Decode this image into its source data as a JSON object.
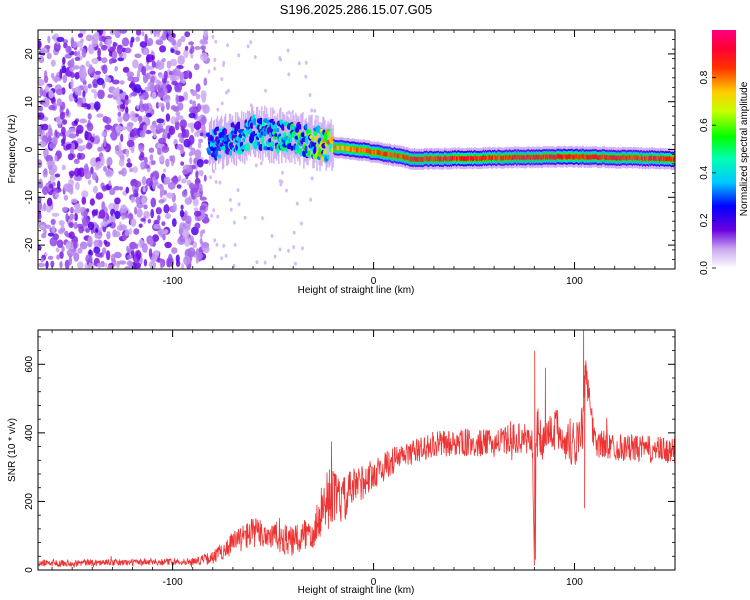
{
  "title": "S196.2025.286.15.07.G05",
  "chart_data": [
    {
      "type": "heatmap",
      "xlabel": "Height of straight line (km)",
      "ylabel": "Frequency (Hz)",
      "xlim": [
        -167,
        150
      ],
      "ylim": [
        -25,
        25
      ],
      "xticks": [
        -100,
        0,
        100
      ],
      "yticks": [
        -20,
        -10,
        0,
        10,
        20
      ],
      "colorbar": {
        "label": "Normalized spectral amplitude",
        "range": [
          0,
          1
        ],
        "ticks": [
          0.0,
          0.2,
          0.4,
          0.6,
          0.8
        ]
      },
      "ridge": [
        {
          "x": -80,
          "y": 1.0,
          "amp": 0.3
        },
        {
          "x": -60,
          "y": 3.5,
          "amp": 0.35
        },
        {
          "x": -40,
          "y": 2.5,
          "amp": 0.45
        },
        {
          "x": -20,
          "y": 0.5,
          "amp": 0.8
        },
        {
          "x": 0,
          "y": -0.5,
          "amp": 0.9
        },
        {
          "x": 20,
          "y": -2.0,
          "amp": 0.95
        },
        {
          "x": 100,
          "y": -1.5,
          "amp": 0.95
        },
        {
          "x": 150,
          "y": -2.0,
          "amp": 0.95
        }
      ]
    },
    {
      "type": "line",
      "xlabel": "Height of straight line (km)",
      "ylabel": "SNR (10 * v/v)",
      "xlim": [
        -167,
        150
      ],
      "ylim": [
        0,
        700
      ],
      "xticks": [
        -100,
        0,
        100
      ],
      "yticks": [
        0,
        200,
        400,
        600
      ],
      "series": [
        {
          "name": "SNR",
          "color": "#ee3333",
          "x": [
            -167,
            -120,
            -90,
            -80,
            -70,
            -60,
            -50,
            -40,
            -30,
            -22,
            -15,
            -10,
            0,
            10,
            20,
            30,
            40,
            60,
            70,
            79,
            80,
            81,
            85,
            90,
            95,
            100,
            104,
            105,
            110,
            120,
            130,
            140,
            150
          ],
          "values": [
            20,
            22,
            25,
            35,
            80,
            110,
            100,
            80,
            120,
            220,
            200,
            240,
            280,
            320,
            345,
            365,
            370,
            370,
            385,
            380,
            30,
            400,
            380,
            420,
            380,
            370,
            420,
            600,
            370,
            360,
            355,
            350,
            345
          ],
          "noise": [
            10,
            10,
            10,
            20,
            35,
            45,
            45,
            45,
            60,
            80,
            70,
            60,
            45,
            40,
            35,
            40,
            40,
            40,
            45,
            45,
            25,
            80,
            60,
            60,
            70,
            80,
            70,
            40,
            45,
            40,
            40,
            40,
            40
          ]
        }
      ]
    }
  ]
}
